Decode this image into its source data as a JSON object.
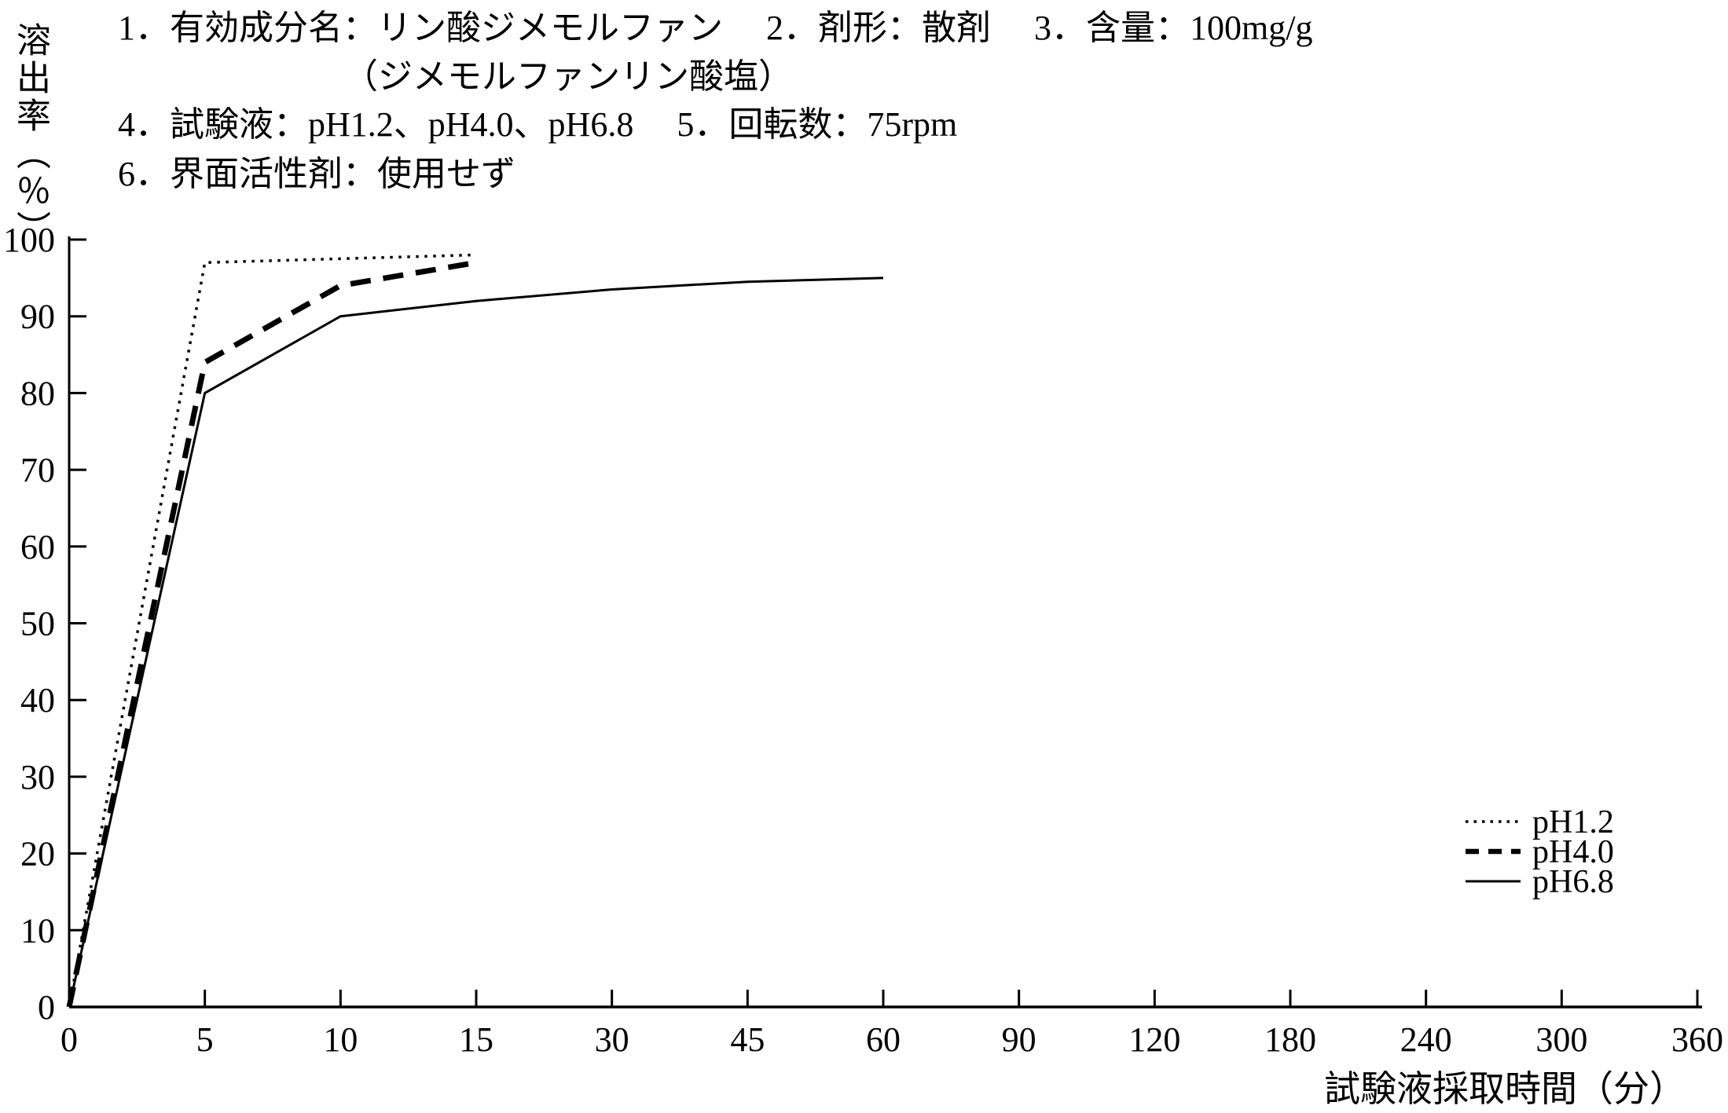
{
  "page": {
    "background": "#ffffff",
    "ink": "#000000"
  },
  "header": {
    "line1": "1．有効成分名：リン酸ジメモルファン　 2．剤形：散剤　 3．含量：100mg/g",
    "line2": "（ジメモルファンリン酸塩）",
    "line3": "4．試験液：pH1.2、pH4.0、pH6.8　 5．回転数：75rpm",
    "line4": "6．界面活性剤：使用せず"
  },
  "chart_data": {
    "type": "line",
    "title": "",
    "ylabel": "溶出率（％）",
    "xlabel": "試験液採取時間（分）",
    "ylim": [
      0,
      100
    ],
    "y_ticks": [
      0,
      10,
      20,
      30,
      40,
      50,
      60,
      70,
      80,
      90,
      100
    ],
    "x_tick_labels": [
      "0",
      "5",
      "10",
      "15",
      "30",
      "45",
      "60",
      "90",
      "120",
      "180",
      "240",
      "300",
      "360"
    ],
    "x_axis_type": "categorical-even-spacing",
    "grid": false,
    "legend_position": "right-middle",
    "series": [
      {
        "name": "pH1.2",
        "line_style": "dotted",
        "x": [
          0,
          5,
          10,
          15
        ],
        "y": [
          0,
          97,
          97.5,
          98
        ]
      },
      {
        "name": "pH4.0",
        "line_style": "dashed",
        "x": [
          0,
          5,
          10,
          15
        ],
        "y": [
          0,
          84,
          94,
          97
        ]
      },
      {
        "name": "pH6.8",
        "line_style": "solid",
        "x": [
          0,
          5,
          10,
          15,
          30,
          45,
          60
        ],
        "y": [
          0,
          80,
          90,
          92,
          93.5,
          94.5,
          95
        ]
      }
    ]
  }
}
